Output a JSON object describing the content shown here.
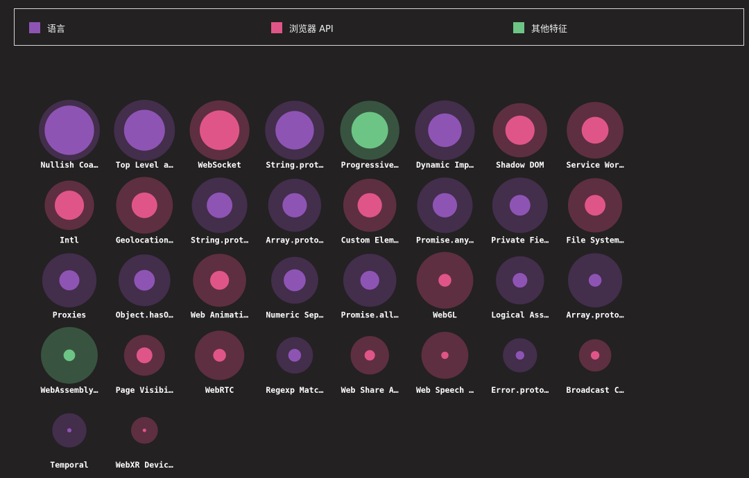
{
  "chart_data": {
    "type": "bubble",
    "legend": {
      "placement": "top",
      "items": [
        {
          "key": "language",
          "label": "语言",
          "color": "#8e54b4"
        },
        {
          "key": "browser",
          "label": "浏览器 API",
          "color": "#e05588"
        },
        {
          "key": "other",
          "label": "其他特征",
          "color": "#6dc585"
        }
      ]
    },
    "colors": {
      "language": {
        "outer": "#432e4c",
        "inner": "#8e54b4"
      },
      "browser": {
        "outer": "#5e2f40",
        "inner": "#e05588"
      },
      "other": {
        "outer": "#385440",
        "inner": "#6dc585"
      }
    },
    "items": [
      {
        "label": "Nullish Coa…",
        "category": "language",
        "outer": 1.0,
        "inner": 0.81
      },
      {
        "label": "Top Level a…",
        "category": "language",
        "outer": 1.0,
        "inner": 0.67
      },
      {
        "label": "WebSocket",
        "category": "browser",
        "outer": 0.98,
        "inner": 0.65
      },
      {
        "label": "String.prot…",
        "category": "language",
        "outer": 0.97,
        "inner": 0.63
      },
      {
        "label": "Progressive…",
        "category": "other",
        "outer": 0.97,
        "inner": 0.6
      },
      {
        "label": "Dynamic Imp…",
        "category": "language",
        "outer": 0.98,
        "inner": 0.55
      },
      {
        "label": "Shadow DOM",
        "category": "browser",
        "outer": 0.89,
        "inner": 0.48
      },
      {
        "label": "Service Wor…",
        "category": "browser",
        "outer": 0.93,
        "inner": 0.44
      },
      {
        "label": "Intl",
        "category": "browser",
        "outer": 0.81,
        "inner": 0.48
      },
      {
        "label": "Geolocation…",
        "category": "browser",
        "outer": 0.93,
        "inner": 0.42
      },
      {
        "label": "String.prot…",
        "category": "language",
        "outer": 0.91,
        "inner": 0.42
      },
      {
        "label": "Array.proto…",
        "category": "language",
        "outer": 0.87,
        "inner": 0.4
      },
      {
        "label": "Custom Elem…",
        "category": "browser",
        "outer": 0.87,
        "inner": 0.4
      },
      {
        "label": "Promise.any…",
        "category": "language",
        "outer": 0.91,
        "inner": 0.4
      },
      {
        "label": "Private Fie…",
        "category": "language",
        "outer": 0.91,
        "inner": 0.34
      },
      {
        "label": "File System…",
        "category": "browser",
        "outer": 0.89,
        "inner": 0.34
      },
      {
        "label": "Proxies",
        "category": "language",
        "outer": 0.89,
        "inner": 0.33
      },
      {
        "label": "Object.hasO…",
        "category": "language",
        "outer": 0.85,
        "inner": 0.34
      },
      {
        "label": "Web Animati…",
        "category": "browser",
        "outer": 0.87,
        "inner": 0.31
      },
      {
        "label": "Numeric Sep…",
        "category": "language",
        "outer": 0.77,
        "inner": 0.36
      },
      {
        "label": "Promise.all…",
        "category": "language",
        "outer": 0.87,
        "inner": 0.31
      },
      {
        "label": "WebGL",
        "category": "browser",
        "outer": 0.93,
        "inner": 0.21
      },
      {
        "label": "Logical Ass…",
        "category": "language",
        "outer": 0.79,
        "inner": 0.24
      },
      {
        "label": "Array.proto…",
        "category": "language",
        "outer": 0.89,
        "inner": 0.21
      },
      {
        "label": "WebAssembly…",
        "category": "other",
        "outer": 0.93,
        "inner": 0.19
      },
      {
        "label": "Page Visibi…",
        "category": "browser",
        "outer": 0.67,
        "inner": 0.26
      },
      {
        "label": "WebRTC",
        "category": "browser",
        "outer": 0.81,
        "inner": 0.21
      },
      {
        "label": "Regexp Matc…",
        "category": "language",
        "outer": 0.6,
        "inner": 0.21
      },
      {
        "label": "Web Share A…",
        "category": "browser",
        "outer": 0.63,
        "inner": 0.17
      },
      {
        "label": "Web Speech …",
        "category": "browser",
        "outer": 0.77,
        "inner": 0.12
      },
      {
        "label": "Error.proto…",
        "category": "language",
        "outer": 0.56,
        "inner": 0.14
      },
      {
        "label": "Broadcast C…",
        "category": "browser",
        "outer": 0.53,
        "inner": 0.14
      },
      {
        "label": "Temporal",
        "category": "language",
        "outer": 0.56,
        "inner": 0.07
      },
      {
        "label": "WebXR Devic…",
        "category": "browser",
        "outer": 0.44,
        "inner": 0.05
      }
    ]
  }
}
